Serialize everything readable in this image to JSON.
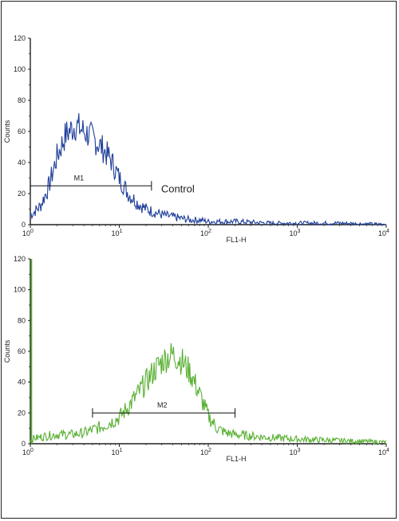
{
  "chart_data": [
    {
      "type": "line",
      "xlabel": "FL1-H",
      "ylabel": "Counts",
      "xscale": "log",
      "xlim": [
        1,
        10000
      ],
      "ylim": [
        0,
        120
      ],
      "x_ticks": [
        {
          "base": "10",
          "exp": "0"
        },
        {
          "base": "10",
          "exp": "1"
        },
        {
          "base": "10",
          "exp": "2"
        },
        {
          "base": "10",
          "exp": "3"
        },
        {
          "base": "10",
          "exp": "4"
        }
      ],
      "y_ticks": [
        "0",
        "20",
        "40",
        "60",
        "80",
        "100",
        "120"
      ],
      "color": "#1f3f9a",
      "series": [
        {
          "name": "Control",
          "x": [
            1.0,
            1.3,
            1.6,
            2.0,
            2.5,
            3.2,
            4.0,
            5.0,
            6.3,
            8.0,
            10,
            12.6,
            16,
            20,
            25,
            32,
            40,
            50,
            63,
            80,
            100,
            200,
            500,
            1000,
            3000,
            10000
          ],
          "y": [
            6,
            12,
            24,
            44,
            58,
            64,
            60,
            56,
            50,
            42,
            30,
            20,
            14,
            10,
            8,
            6,
            5,
            4,
            3,
            3,
            2,
            2,
            1,
            1,
            1,
            0
          ]
        }
      ],
      "marker": {
        "label": "M1",
        "x_start": 1.0,
        "x_end": 23.0,
        "y": 25
      },
      "annotation": "Control"
    },
    {
      "type": "line",
      "xlabel": "FL1-H",
      "ylabel": "Counts",
      "xscale": "log",
      "xlim": [
        1,
        10000
      ],
      "ylim": [
        0,
        120
      ],
      "x_ticks": [
        {
          "base": "10",
          "exp": "0"
        },
        {
          "base": "10",
          "exp": "1"
        },
        {
          "base": "10",
          "exp": "2"
        },
        {
          "base": "10",
          "exp": "3"
        },
        {
          "base": "10",
          "exp": "4"
        }
      ],
      "y_ticks": [
        "0",
        "20",
        "40",
        "60",
        "80",
        "100",
        "120"
      ],
      "color": "#59b032",
      "series": [
        {
          "name": "",
          "x": [
            1.0,
            1.5,
            2.0,
            3.0,
            4.0,
            5.0,
            6.3,
            8.0,
            10,
            12.6,
            16,
            20,
            25,
            32,
            40,
            50,
            63,
            80,
            100,
            126,
            160,
            200,
            300,
            500,
            1000,
            3000,
            10000
          ],
          "y": [
            3,
            5,
            6,
            6,
            7,
            9,
            11,
            14,
            17,
            24,
            32,
            40,
            48,
            55,
            58,
            54,
            46,
            32,
            18,
            10,
            7,
            6,
            5,
            4,
            3,
            2,
            1
          ]
        }
      ],
      "marker": {
        "label": "M2",
        "x_start": 5.0,
        "x_end": 200.0,
        "y": 20
      }
    }
  ]
}
